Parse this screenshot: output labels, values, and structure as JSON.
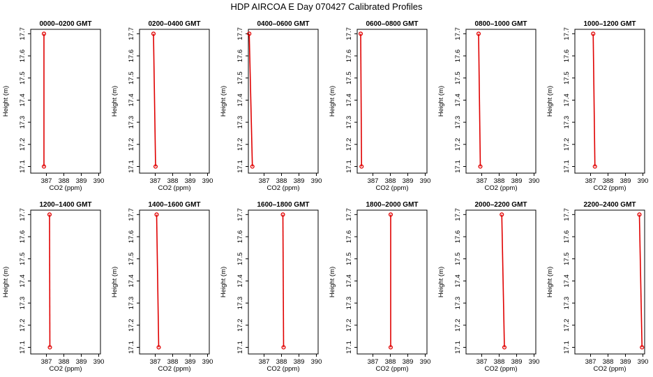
{
  "title": "HDP  AIRCOA E  Day 070427  Calibrated Profiles",
  "colors": {
    "profile": "#e00000",
    "axes": "#000000"
  },
  "chart_data": [
    {
      "type": "line",
      "title": "0000–0200 GMT",
      "xlabel": "CO2 (ppm)",
      "ylabel": "Height (m)",
      "xlim": [
        386.1,
        390.1
      ],
      "ylim": [
        17.07,
        17.72
      ],
      "xticks": [
        387,
        388,
        389,
        390
      ],
      "yticks": [
        17.1,
        17.2,
        17.3,
        17.4,
        17.5,
        17.6,
        17.7
      ],
      "x": [
        386.86,
        386.86
      ],
      "y": [
        17.1,
        17.7
      ]
    },
    {
      "type": "line",
      "title": "0200–0400 GMT",
      "xlabel": "CO2 (ppm)",
      "ylabel": "Height (m)",
      "xlim": [
        386.1,
        390.1
      ],
      "ylim": [
        17.07,
        17.72
      ],
      "xticks": [
        387,
        388,
        389,
        390
      ],
      "yticks": [
        17.1,
        17.2,
        17.3,
        17.4,
        17.5,
        17.6,
        17.7
      ],
      "x": [
        387.02,
        386.9
      ],
      "y": [
        17.1,
        17.7
      ]
    },
    {
      "type": "line",
      "title": "0400–0600 GMT",
      "xlabel": "CO2 (ppm)",
      "ylabel": "Height (m)",
      "xlim": [
        386.1,
        390.1
      ],
      "ylim": [
        17.07,
        17.72
      ],
      "xticks": [
        387,
        388,
        389,
        390
      ],
      "yticks": [
        17.1,
        17.2,
        17.3,
        17.4,
        17.5,
        17.6,
        17.7
      ],
      "x": [
        386.33,
        386.15
      ],
      "y": [
        17.1,
        17.7
      ]
    },
    {
      "type": "line",
      "title": "0600–0800 GMT",
      "xlabel": "CO2 (ppm)",
      "ylabel": "Height (m)",
      "xlim": [
        386.1,
        390.1
      ],
      "ylim": [
        17.07,
        17.72
      ],
      "xticks": [
        387,
        388,
        389,
        390
      ],
      "yticks": [
        17.1,
        17.2,
        17.3,
        17.4,
        17.5,
        17.6,
        17.7
      ],
      "x": [
        386.35,
        386.3
      ],
      "y": [
        17.1,
        17.7
      ]
    },
    {
      "type": "line",
      "title": "0800–1000 GMT",
      "xlabel": "CO2 (ppm)",
      "ylabel": "Height (m)",
      "xlim": [
        386.1,
        390.1
      ],
      "ylim": [
        17.07,
        17.72
      ],
      "xticks": [
        387,
        388,
        389,
        390
      ],
      "yticks": [
        17.1,
        17.2,
        17.3,
        17.4,
        17.5,
        17.6,
        17.7
      ],
      "x": [
        386.92,
        386.82
      ],
      "y": [
        17.1,
        17.7
      ]
    },
    {
      "type": "line",
      "title": "1000–1200 GMT",
      "xlabel": "CO2 (ppm)",
      "ylabel": "Height (m)",
      "xlim": [
        386.1,
        390.1
      ],
      "ylim": [
        17.07,
        17.72
      ],
      "xticks": [
        387,
        388,
        389,
        390
      ],
      "yticks": [
        17.1,
        17.2,
        17.3,
        17.4,
        17.5,
        17.6,
        17.7
      ],
      "x": [
        387.25,
        387.15
      ],
      "y": [
        17.1,
        17.7
      ]
    },
    {
      "type": "line",
      "title": "1200–1400 GMT",
      "xlabel": "CO2 (ppm)",
      "ylabel": "Height (m)",
      "xlim": [
        386.1,
        390.1
      ],
      "ylim": [
        17.07,
        17.72
      ],
      "xticks": [
        387,
        388,
        389,
        390
      ],
      "yticks": [
        17.1,
        17.2,
        17.3,
        17.4,
        17.5,
        17.6,
        17.7
      ],
      "x": [
        387.2,
        387.18
      ],
      "y": [
        17.1,
        17.7
      ]
    },
    {
      "type": "line",
      "title": "1400–1600 GMT",
      "xlabel": "CO2 (ppm)",
      "ylabel": "Height (m)",
      "xlim": [
        386.1,
        390.1
      ],
      "ylim": [
        17.07,
        17.72
      ],
      "xticks": [
        387,
        388,
        389,
        390
      ],
      "yticks": [
        17.1,
        17.2,
        17.3,
        17.4,
        17.5,
        17.6,
        17.7
      ],
      "x": [
        387.2,
        387.08
      ],
      "y": [
        17.1,
        17.7
      ]
    },
    {
      "type": "line",
      "title": "1600–1800 GMT",
      "xlabel": "CO2 (ppm)",
      "ylabel": "Height (m)",
      "xlim": [
        386.1,
        390.1
      ],
      "ylim": [
        17.07,
        17.72
      ],
      "xticks": [
        387,
        388,
        389,
        390
      ],
      "yticks": [
        17.1,
        17.2,
        17.3,
        17.4,
        17.5,
        17.6,
        17.7
      ],
      "x": [
        388.12,
        388.08
      ],
      "y": [
        17.1,
        17.7
      ]
    },
    {
      "type": "line",
      "title": "1800–2000 GMT",
      "xlabel": "CO2 (ppm)",
      "ylabel": "Height (m)",
      "xlim": [
        386.1,
        390.1
      ],
      "ylim": [
        17.07,
        17.72
      ],
      "xticks": [
        387,
        388,
        389,
        390
      ],
      "yticks": [
        17.1,
        17.2,
        17.3,
        17.4,
        17.5,
        17.6,
        17.7
      ],
      "x": [
        388.02,
        388.02
      ],
      "y": [
        17.1,
        17.7
      ]
    },
    {
      "type": "line",
      "title": "2000–2200 GMT",
      "xlabel": "CO2 (ppm)",
      "ylabel": "Height (m)",
      "xlim": [
        386.1,
        390.1
      ],
      "ylim": [
        17.07,
        17.72
      ],
      "xticks": [
        387,
        388,
        389,
        390
      ],
      "yticks": [
        17.1,
        17.2,
        17.3,
        17.4,
        17.5,
        17.6,
        17.7
      ],
      "x": [
        388.3,
        388.15
      ],
      "y": [
        17.1,
        17.7
      ]
    },
    {
      "type": "line",
      "title": "2200–2400 GMT",
      "xlabel": "CO2 (ppm)",
      "ylabel": "Height (m)",
      "xlim": [
        386.1,
        390.1
      ],
      "ylim": [
        17.07,
        17.72
      ],
      "xticks": [
        387,
        388,
        389,
        390
      ],
      "yticks": [
        17.1,
        17.2,
        17.3,
        17.4,
        17.5,
        17.6,
        17.7
      ],
      "x": [
        389.95,
        389.8
      ],
      "y": [
        17.1,
        17.7
      ]
    }
  ]
}
